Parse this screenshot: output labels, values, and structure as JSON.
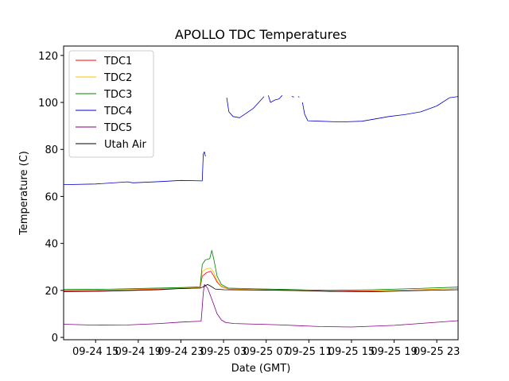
{
  "chart_data": {
    "type": "line",
    "title": "APOLLO TDC Temperatures",
    "xlabel": "Date (GMT)",
    "ylabel": "Temperature (C)",
    "xlim_hours": [
      0,
      37.0
    ],
    "ylim": [
      -1,
      124
    ],
    "x_origin_label": "09-24 12",
    "x_ticks": [
      {
        "h": 3,
        "label": "09-24 15"
      },
      {
        "h": 7,
        "label": "09-24 19"
      },
      {
        "h": 11,
        "label": "09-24 23"
      },
      {
        "h": 15,
        "label": "09-25 03"
      },
      {
        "h": 19,
        "label": "09-25 07"
      },
      {
        "h": 23,
        "label": "09-25 11"
      },
      {
        "h": 27,
        "label": "09-25 15"
      },
      {
        "h": 31,
        "label": "09-25 19"
      },
      {
        "h": 35,
        "label": "09-25 23"
      }
    ],
    "y_ticks": [
      0,
      20,
      40,
      60,
      80,
      100,
      120
    ],
    "legend_position": "top-left",
    "series": [
      {
        "name": "TDC1",
        "color": "#ff0000",
        "legend": true,
        "points": [
          [
            0,
            19.8
          ],
          [
            4,
            19.9
          ],
          [
            8,
            20.4
          ],
          [
            11,
            20.8
          ],
          [
            12.8,
            21
          ],
          [
            13.0,
            26
          ],
          [
            13.4,
            27.5
          ],
          [
            13.8,
            28.2
          ],
          [
            14.1,
            26
          ],
          [
            14.4,
            23.5
          ],
          [
            14.8,
            21.6
          ],
          [
            15.4,
            20.7
          ],
          [
            17,
            20.4
          ],
          [
            21,
            20
          ],
          [
            25,
            19.6
          ],
          [
            29,
            19.8
          ],
          [
            33,
            20.2
          ],
          [
            37,
            20.8
          ]
        ]
      },
      {
        "name": "TDC2",
        "color": "#ffc000",
        "legend": true,
        "points": [
          [
            0,
            20.1
          ],
          [
            4,
            20.1
          ],
          [
            8,
            20.6
          ],
          [
            11,
            21
          ],
          [
            12.8,
            21.2
          ],
          [
            13.0,
            28
          ],
          [
            13.4,
            29.2
          ],
          [
            13.8,
            29.5
          ],
          [
            14.1,
            27.5
          ],
          [
            14.4,
            24
          ],
          [
            14.8,
            21.8
          ],
          [
            15.4,
            20.8
          ],
          [
            17,
            20.4
          ],
          [
            21,
            20
          ],
          [
            25,
            19.4
          ],
          [
            29,
            19.6
          ],
          [
            33,
            20.2
          ],
          [
            37,
            20.8
          ]
        ]
      },
      {
        "name": "TDC3",
        "color": "#008000",
        "legend": true,
        "points": [
          [
            0,
            20.4
          ],
          [
            4,
            20.5
          ],
          [
            8,
            20.9
          ],
          [
            11,
            21.2
          ],
          [
            12.8,
            21.5
          ],
          [
            13.0,
            31
          ],
          [
            13.3,
            33
          ],
          [
            13.7,
            33.5
          ],
          [
            13.9,
            37
          ],
          [
            14.1,
            33
          ],
          [
            14.4,
            26
          ],
          [
            14.8,
            22.5
          ],
          [
            15.4,
            21
          ],
          [
            17,
            20.8
          ],
          [
            21,
            20.4
          ],
          [
            25,
            20
          ],
          [
            29,
            20.3
          ],
          [
            33,
            20.8
          ],
          [
            37,
            21.4
          ]
        ]
      },
      {
        "name": "TDC4",
        "color": "#0000cc",
        "legend": true,
        "points": [
          [
            0,
            65
          ],
          [
            3,
            65.3
          ],
          [
            6,
            66.2
          ],
          [
            6.5,
            65.8
          ],
          [
            9,
            66.3
          ],
          [
            11,
            66.8
          ],
          [
            13.0,
            66.6
          ],
          [
            13.1,
            78
          ],
          [
            13.2,
            79
          ],
          [
            13.3,
            77
          ]
        ]
      },
      {
        "name": "TDC4-b",
        "color": "#0000cc",
        "legend": false,
        "points": [
          [
            15.3,
            102
          ],
          [
            15.5,
            96
          ],
          [
            15.9,
            94
          ],
          [
            16.5,
            93.5
          ],
          [
            17,
            95
          ],
          [
            17.8,
            97.5
          ],
          [
            18.5,
            101
          ],
          [
            18.8,
            102.5
          ]
        ]
      },
      {
        "name": "TDC4-c",
        "color": "#0000cc",
        "legend": false,
        "points": [
          [
            19.2,
            103
          ],
          [
            19.4,
            100
          ],
          [
            19.8,
            101
          ],
          [
            20.2,
            101.5
          ],
          [
            20.5,
            103
          ]
        ]
      },
      {
        "name": "TDC4-d",
        "color": "#0000cc",
        "legend": false,
        "points": [
          [
            21.4,
            102.5
          ],
          [
            21.6,
            102.3
          ]
        ]
      },
      {
        "name": "TDC4-e",
        "color": "#0000cc",
        "legend": false,
        "points": [
          [
            22,
            102.5
          ],
          [
            22.1,
            102.2
          ]
        ]
      },
      {
        "name": "TDC4-f",
        "color": "#0000cc",
        "legend": false,
        "points": [
          [
            22.4,
            100
          ],
          [
            22.6,
            95
          ],
          [
            22.9,
            92.2
          ],
          [
            24,
            92
          ],
          [
            26,
            91.7
          ],
          [
            28,
            92
          ],
          [
            29.5,
            93.2
          ],
          [
            30.5,
            94
          ],
          [
            32,
            94.8
          ],
          [
            33.5,
            96
          ],
          [
            35,
            98.5
          ],
          [
            36.2,
            102
          ],
          [
            37,
            102.5
          ]
        ]
      },
      {
        "name": "TDC5",
        "color": "#800080",
        "legend": true,
        "points": [
          [
            0,
            5.6
          ],
          [
            3,
            5.2
          ],
          [
            6,
            5.3
          ],
          [
            9,
            5.9
          ],
          [
            11,
            6.5
          ],
          [
            12.9,
            6.9
          ],
          [
            13.0,
            13
          ],
          [
            13.1,
            19
          ],
          [
            13.2,
            22.5
          ],
          [
            13.5,
            21
          ],
          [
            14.0,
            15
          ],
          [
            14.4,
            10
          ],
          [
            14.8,
            7.4
          ],
          [
            15.2,
            6.3
          ],
          [
            16,
            5.9
          ],
          [
            20,
            5.4
          ],
          [
            24,
            4.6
          ],
          [
            27,
            4.4
          ],
          [
            31,
            5.1
          ],
          [
            34,
            6.1
          ],
          [
            37,
            7.1
          ]
        ]
      },
      {
        "name": "Utah Air",
        "color": "#000000",
        "legend": true,
        "points": [
          [
            0,
            19.5
          ],
          [
            3,
            19.6
          ],
          [
            6,
            19.9
          ],
          [
            9,
            20.3
          ],
          [
            11,
            20.8
          ],
          [
            12.8,
            21
          ],
          [
            13.1,
            21.5
          ],
          [
            13.5,
            22.5
          ],
          [
            13.8,
            21.8
          ],
          [
            14.2,
            20.6
          ],
          [
            15,
            20.3
          ],
          [
            17,
            20.2
          ],
          [
            21,
            20
          ],
          [
            25,
            19.6
          ],
          [
            29,
            19.4
          ],
          [
            33,
            19.9
          ],
          [
            37,
            20.3
          ]
        ]
      }
    ]
  }
}
